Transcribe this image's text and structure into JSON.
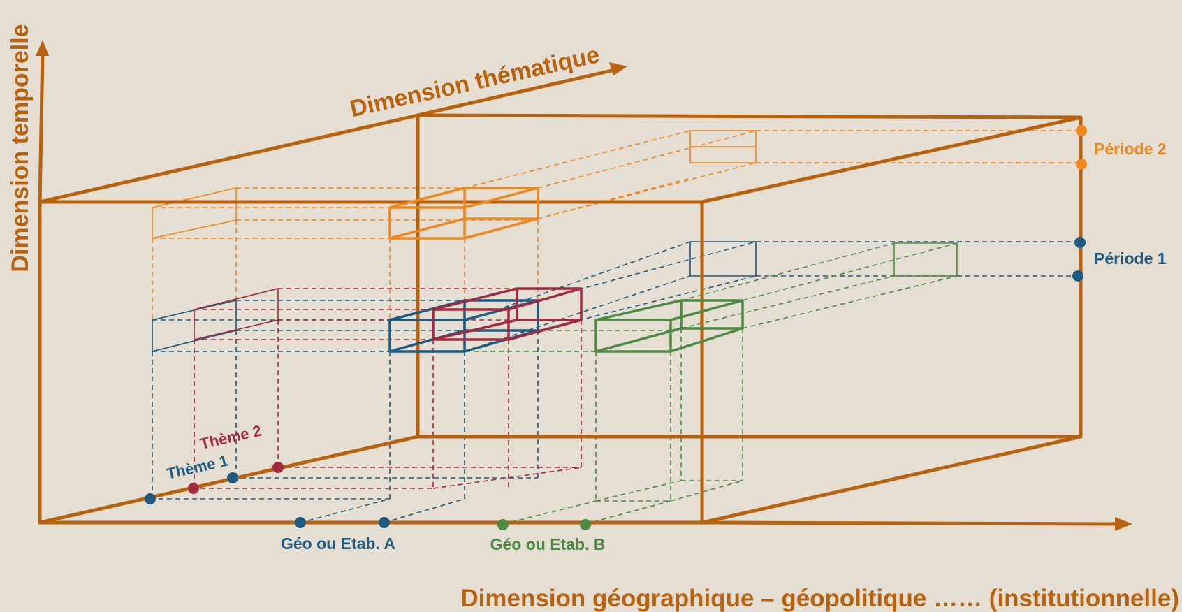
{
  "colors": {
    "background": "#e5dfd3",
    "axis": "#b8620e",
    "periode2": "#f0861e",
    "periode1": "#1f5a80",
    "theme2": "#a32a3e",
    "geoB": "#4e8a42"
  },
  "axes": {
    "temporal": "Dimension  temporelle",
    "thematic": "Dimension thématique",
    "geographic": "Dimension géographique – géopolitique ……  (institutionnelle)"
  },
  "periods": {
    "p2": "Période 2",
    "p1": "Période 1"
  },
  "themes": {
    "t1": "Thème 1",
    "t2": "Thème 2"
  },
  "geo": {
    "a": "Géo ou Etab. A",
    "b": "Géo ou Etab. B"
  }
}
